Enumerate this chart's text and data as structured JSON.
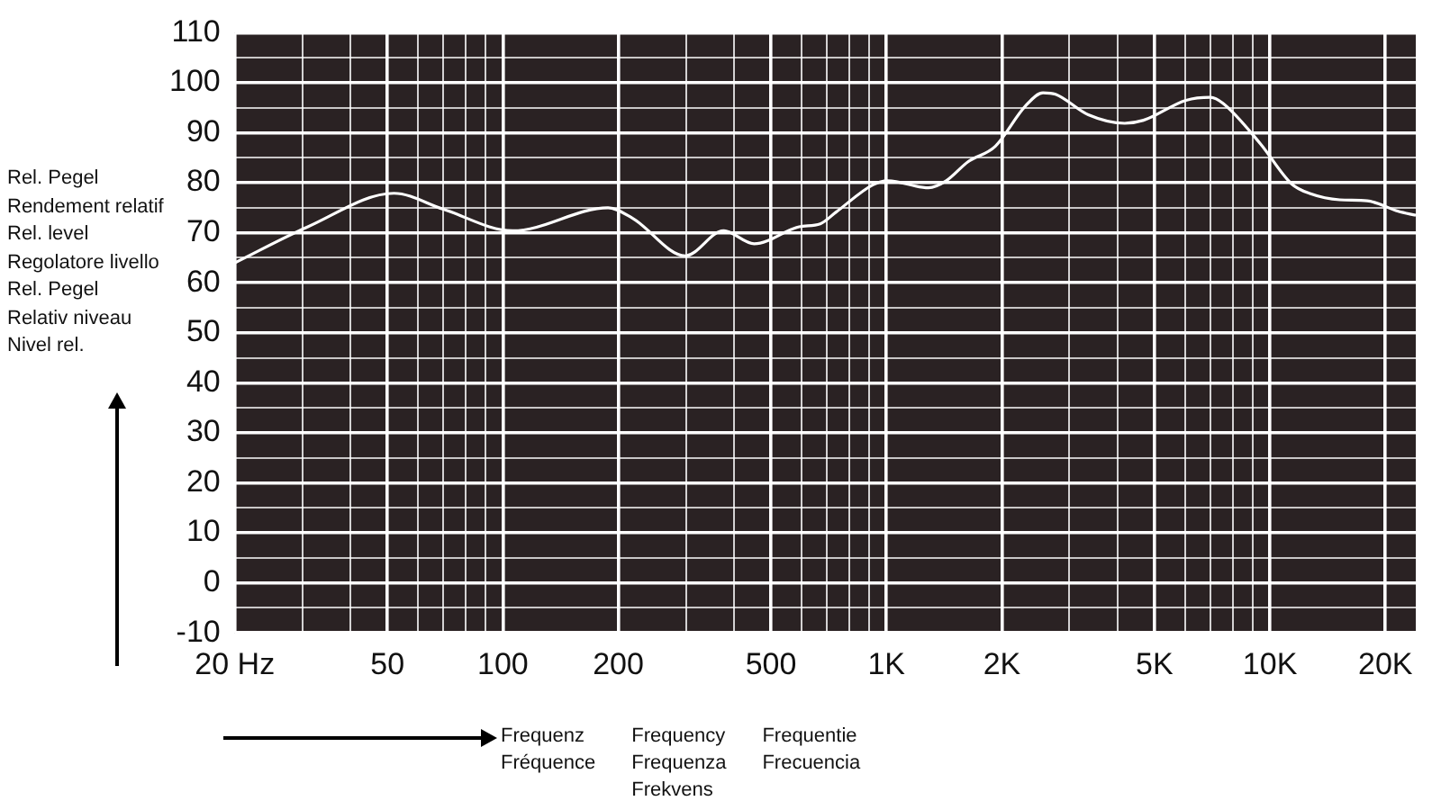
{
  "chart_data": {
    "type": "line",
    "ylabel": "Rel. Pegel\nRendement relatif\nRel. level\nRegolatore livello\nRel. Pegel\nRelativ niveau\nNivel rel.",
    "xlabel": "Frequenz\nFréquence\n\nFrequency\nFrequenza\nFrekvens\n\nFrequentie\nFrecuencia",
    "log": "x",
    "grid": true,
    "legend": false,
    "marker": "none",
    "line_style": "solid",
    "xlim": [
      20,
      24000
    ],
    "xticks": [
      {
        "value": 20,
        "label": "20 Hz"
      },
      {
        "value": 30,
        "label": null
      },
      {
        "value": 40,
        "label": null
      },
      50,
      {
        "value": 60,
        "label": null
      },
      {
        "value": 70,
        "label": null
      },
      {
        "value": 80,
        "label": null
      },
      {
        "value": 90,
        "label": null
      },
      100,
      200,
      {
        "value": 300,
        "label": null
      },
      {
        "value": 400,
        "label": null
      },
      500,
      {
        "value": 600,
        "label": null
      },
      {
        "value": 700,
        "label": null
      },
      {
        "value": 800,
        "label": null
      },
      {
        "value": 900,
        "label": null
      },
      {
        "value": 1000,
        "label": "1K"
      },
      {
        "value": 2000,
        "label": "2K"
      },
      {
        "value": 3000,
        "label": null
      },
      {
        "value": 4000,
        "label": null
      },
      {
        "value": 5000,
        "label": "5K"
      },
      {
        "value": 6000,
        "label": null
      },
      {
        "value": 7000,
        "label": null
      },
      {
        "value": 8000,
        "label": null
      },
      {
        "value": 9000,
        "label": null
      },
      {
        "value": 10000,
        "label": "10K"
      },
      {
        "value": 20000,
        "label": "20K"
      }
    ],
    "ylim": [
      -10,
      110
    ],
    "yticks": [
      -10,
      {
        "value": -5,
        "label": null
      },
      0,
      {
        "value": 5,
        "label": null
      },
      10,
      {
        "value": 15,
        "label": null
      },
      20,
      {
        "value": 25,
        "label": null
      },
      30,
      {
        "value": 35,
        "label": null
      },
      40,
      {
        "value": 45,
        "label": null
      },
      50,
      {
        "value": 55,
        "label": null
      },
      60,
      {
        "value": 65,
        "label": null
      },
      70,
      {
        "value": 75,
        "label": null
      },
      80,
      {
        "value": 85,
        "label": null
      },
      90,
      {
        "value": 95,
        "label": null
      },
      100,
      {
        "value": 105,
        "label": null
      },
      110
    ],
    "series": [
      {
        "color": "#ffffff",
        "x": [
          20,
          31,
          52,
          70,
          106,
          188,
          218,
          299,
          376,
          452,
          592,
          672,
          738,
          922,
          1008,
          1288,
          1432,
          1632,
          1922,
          2300,
          2560,
          2760,
          3360,
          4180,
          4680,
          6040,
          7000,
          7540,
          9420,
          11380,
          12760,
          15200,
          17940,
          21600,
          24000
        ],
        "values": [
          64,
          71.2,
          77.9,
          74.7,
          70.4,
          75,
          72.9,
          65.4,
          70.4,
          67.8,
          71.2,
          71.8,
          74.1,
          79.6,
          80.4,
          79,
          80.4,
          84.2,
          87.3,
          95.3,
          98,
          97.7,
          93.6,
          91.9,
          92.5,
          96.5,
          97.1,
          95.9,
          87.9,
          79.8,
          77.8,
          76.6,
          76.4,
          74.3,
          73.5
        ]
      }
    ]
  }
}
